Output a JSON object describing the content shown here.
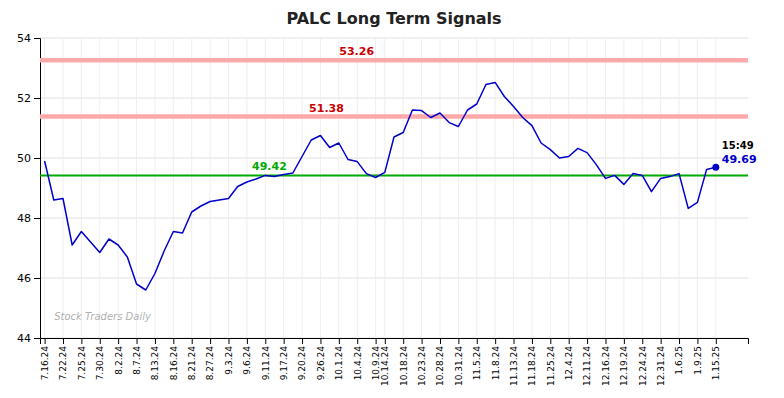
{
  "chart_data": {
    "type": "line",
    "title": "PALC Long Term Signals",
    "categories": [
      "7.16.24",
      null,
      "7.22.24",
      null,
      "7.25.24",
      null,
      "7.30.24",
      null,
      "8.2.24",
      null,
      "8.7.24",
      null,
      "8.13.24",
      null,
      "8.16.24",
      null,
      "8.21.24",
      null,
      "8.27.24",
      null,
      "9.3.24",
      null,
      "9.6.24",
      null,
      "9.11.24",
      null,
      "9.17.24",
      null,
      "9.20.24",
      null,
      "9.26.24",
      null,
      "10.1.24",
      null,
      "10.4.24",
      null,
      "10.9.24",
      "10.14.24",
      null,
      "10.18.24",
      null,
      "10.23.24",
      null,
      "10.28.24",
      null,
      "10.31.24",
      null,
      "11.5.24",
      null,
      "11.8.24",
      null,
      "11.13.24",
      null,
      "11.18.24",
      null,
      "11.25.24",
      null,
      "12.4.24",
      null,
      "12.11.24",
      null,
      "12.16.24",
      null,
      "12.19.24",
      null,
      "12.24.24",
      null,
      "12.31.24",
      null,
      "1.6.25",
      null,
      "1.9.25",
      null,
      "1.15.25"
    ],
    "values": [
      49.9,
      48.6,
      48.65,
      47.1,
      47.55,
      47.2,
      46.85,
      47.3,
      47.1,
      46.7,
      45.8,
      45.6,
      46.15,
      46.9,
      47.55,
      47.5,
      48.2,
      48.4,
      48.55,
      48.6,
      48.65,
      49.05,
      49.2,
      49.3,
      49.42,
      49.38,
      49.45,
      49.5,
      50.05,
      50.6,
      50.75,
      50.35,
      50.5,
      49.95,
      49.88,
      49.48,
      49.35,
      49.52,
      50.7,
      50.85,
      51.6,
      51.58,
      51.35,
      51.5,
      51.18,
      51.05,
      51.6,
      51.8,
      52.45,
      52.52,
      52.05,
      51.72,
      51.35,
      51.08,
      50.5,
      50.28,
      50.0,
      50.05,
      50.32,
      50.18,
      49.78,
      49.32,
      49.42,
      49.12,
      49.48,
      49.42,
      48.88,
      49.32,
      49.38,
      49.48,
      48.32,
      48.52,
      49.62,
      49.69
    ],
    "color": "#0000cc",
    "ylim": [
      44,
      54
    ],
    "yticks": [
      44,
      46,
      48,
      50,
      52,
      54
    ],
    "grid": true,
    "reference_lines": [
      {
        "value": 51.38,
        "label": "51.38",
        "color": "#ffaaaa"
      },
      {
        "value": 53.26,
        "label": "53.26",
        "color": "#ffaaaa"
      },
      {
        "value": 49.42,
        "label": "49.42",
        "color": "#00aa00"
      }
    ],
    "annotations": [
      "15:49",
      "49.69"
    ],
    "watermark": "Stock Traders Daily"
  }
}
